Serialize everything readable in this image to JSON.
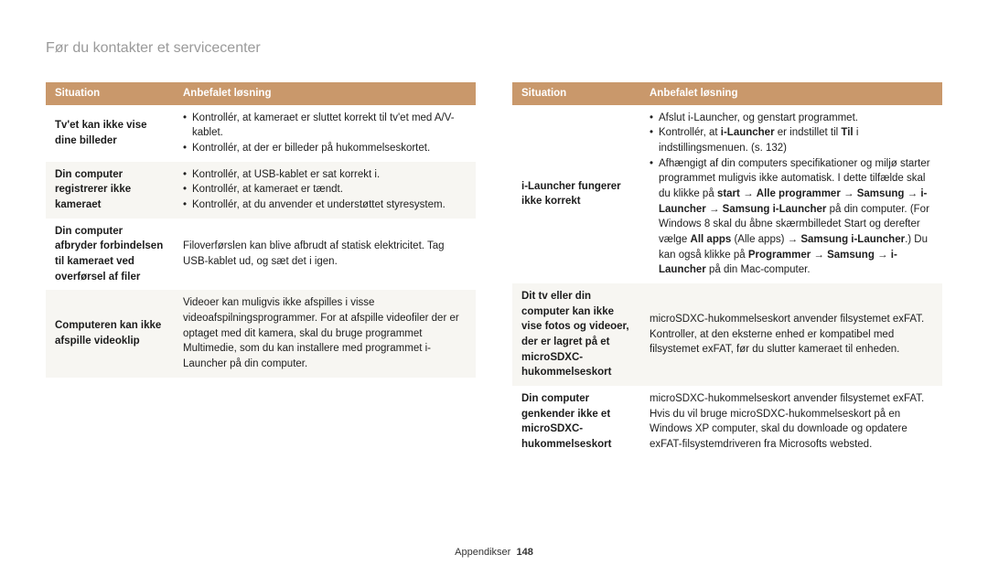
{
  "page_title": "Før du kontakter et servicecenter",
  "footer_label": "Appendikser",
  "footer_page": "148",
  "header_situation": "Situation",
  "header_solution": "Anbefalet løsning",
  "left": [
    {
      "situation": "Tv'et kan ikke vise dine billeder",
      "bullets": [
        "Kontrollér, at kameraet er sluttet korrekt til tv'et med A/V-kablet.",
        "Kontrollér, at der er billeder på hukommelseskortet."
      ]
    },
    {
      "situation": "Din computer registrerer ikke kameraet",
      "bullets": [
        "Kontrollér, at USB-kablet er sat korrekt i.",
        "Kontrollér, at kameraet er tændt.",
        "Kontrollér, at du anvender et understøttet styresystem."
      ]
    },
    {
      "situation": "Din computer afbryder forbindelsen til kameraet ved overførsel af filer",
      "text": "Filoverførslen kan blive afbrudt af statisk elektricitet. Tag USB-kablet ud, og sæt det i igen."
    },
    {
      "situation": "Computeren kan ikke afspille videoklip",
      "text": "Videoer kan muligvis ikke afspilles i visse videoafspilningsprogrammer. For at afspille videofiler der er optaget med dit kamera, skal du bruge programmet Multimedie, som du kan installere med programmet i-Launcher på din computer."
    }
  ],
  "right": [
    {
      "situation": "i-Launcher fungerer ikke korrekt",
      "html": "<ul class='sol'><li>Afslut i-Launcher, og genstart programmet.</li><li>Kontrollér, at <span class='b'>i-Launcher</span> er indstillet til <span class='b'>Til</span> i indstillingsmenuen. (s. 132)</li><li>Afhængigt af din computers specifikationer og miljø starter programmet muligvis ikke automatisk. I dette tilfælde skal du klikke på <span class='b'>start</span> → <span class='b'>Alle programmer</span> → <span class='b'>Samsung</span> → <span class='b'>i-Launcher</span> → <span class='b'>Samsung i-Launcher</span> på din computer. (For Windows 8 skal du åbne skærmbilledet Start og derefter vælge <span class='b'>All apps</span> (Alle apps) → <span class='b'>Samsung i-Launcher</span>.) Du kan også klikke på <span class='b'>Programmer</span> → <span class='b'>Samsung</span> → <span class='b'>i-Launcher</span> på din Mac-computer.</li></ul>"
    },
    {
      "situation": "Dit tv eller din computer kan ikke vise fotos og videoer, der er lagret på et microSDXC-hukommelseskort",
      "text": "microSDXC-hukommelseskort anvender filsystemet exFAT. Kontroller, at den eksterne enhed er kompatibel med filsystemet exFAT, før du slutter kameraet til enheden."
    },
    {
      "situation": "Din computer genkender ikke et microSDXC-hukommelseskort",
      "text": "microSDXC-hukommelseskort anvender filsystemet exFAT. Hvis du vil bruge microSDXC-hukommelseskort på en Windows XP computer, skal du downloade og opdatere exFAT-filsystemdriveren fra Microsofts websted."
    }
  ]
}
